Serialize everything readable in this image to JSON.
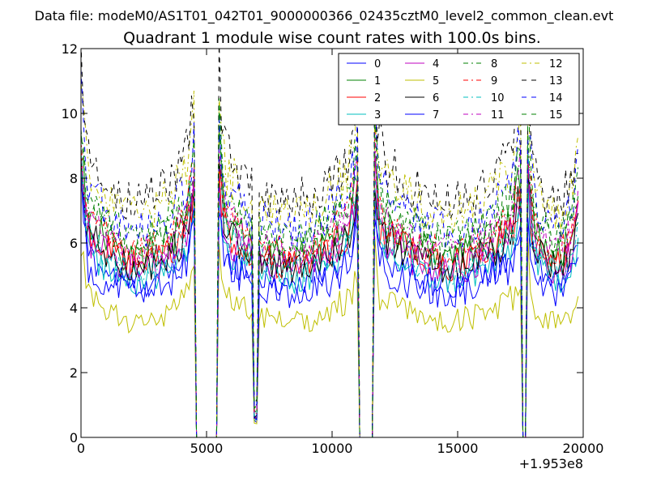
{
  "chart_data": {
    "type": "line",
    "suptitle": "Data file: modeM0/AS1T01_042T01_9000000366_02435cztM0_level2_common_clean.evt",
    "title": "Quadrant 1 module wise count rates with 100.0s bins.",
    "xlabel": "",
    "ylabel": "",
    "xlim": [
      0,
      20000
    ],
    "ylim": [
      0,
      12
    ],
    "x_offset_label": "+1.953e8",
    "xticks": [
      "0",
      "5000",
      "10000",
      "15000",
      "20000"
    ],
    "yticks": [
      "0",
      "2",
      "4",
      "6",
      "8",
      "10",
      "12"
    ],
    "grid": false,
    "legend_position": "top-right",
    "x_step": 100,
    "x_range": [
      0,
      19800
    ],
    "gaps": [
      [
        4550,
        5450
      ],
      [
        11050,
        11650
      ],
      [
        17550,
        17750
      ]
    ],
    "dips": [
      [
        6950,
        0.1
      ]
    ],
    "series": [
      {
        "name": "0",
        "color": "#0000ff",
        "dash": "solid",
        "level": 0.85,
        "noise": 0.06
      },
      {
        "name": "1",
        "color": "#008000",
        "dash": "solid",
        "level": 1.0,
        "noise": 0.06
      },
      {
        "name": "2",
        "color": "#ff0000",
        "dash": "solid",
        "level": 0.95,
        "noise": 0.06
      },
      {
        "name": "3",
        "color": "#00bfbf",
        "dash": "solid",
        "level": 0.87,
        "noise": 0.06
      },
      {
        "name": "4",
        "color": "#bf00bf",
        "dash": "solid",
        "level": 0.93,
        "noise": 0.06
      },
      {
        "name": "5",
        "color": "#bfbf00",
        "dash": "solid",
        "level": 0.64,
        "noise": 0.07
      },
      {
        "name": "6",
        "color": "#000000",
        "dash": "solid",
        "level": 0.94,
        "noise": 0.06
      },
      {
        "name": "7",
        "color": "#0000ff",
        "dash": "solid",
        "level": 0.8,
        "noise": 0.07
      },
      {
        "name": "8",
        "color": "#008000",
        "dash": "dashdot",
        "level": 1.09,
        "noise": 0.06
      },
      {
        "name": "9",
        "color": "#ff0000",
        "dash": "dashdot",
        "level": 1.02,
        "noise": 0.06
      },
      {
        "name": "10",
        "color": "#00bfbf",
        "dash": "dashdot",
        "level": 0.93,
        "noise": 0.06
      },
      {
        "name": "11",
        "color": "#bf00bf",
        "dash": "dashdot",
        "level": 1.03,
        "noise": 0.06
      },
      {
        "name": "12",
        "color": "#bfbf00",
        "dash": "dashdot",
        "level": 1.23,
        "noise": 0.06
      },
      {
        "name": "13",
        "color": "#000000",
        "dash": "dashed",
        "level": 1.3,
        "noise": 0.06
      },
      {
        "name": "14",
        "color": "#0000ff",
        "dash": "dashed",
        "level": 1.15,
        "noise": 0.06
      },
      {
        "name": "15",
        "color": "#008000",
        "dash": "dashed",
        "level": 1.1,
        "noise": 0.06
      }
    ]
  }
}
